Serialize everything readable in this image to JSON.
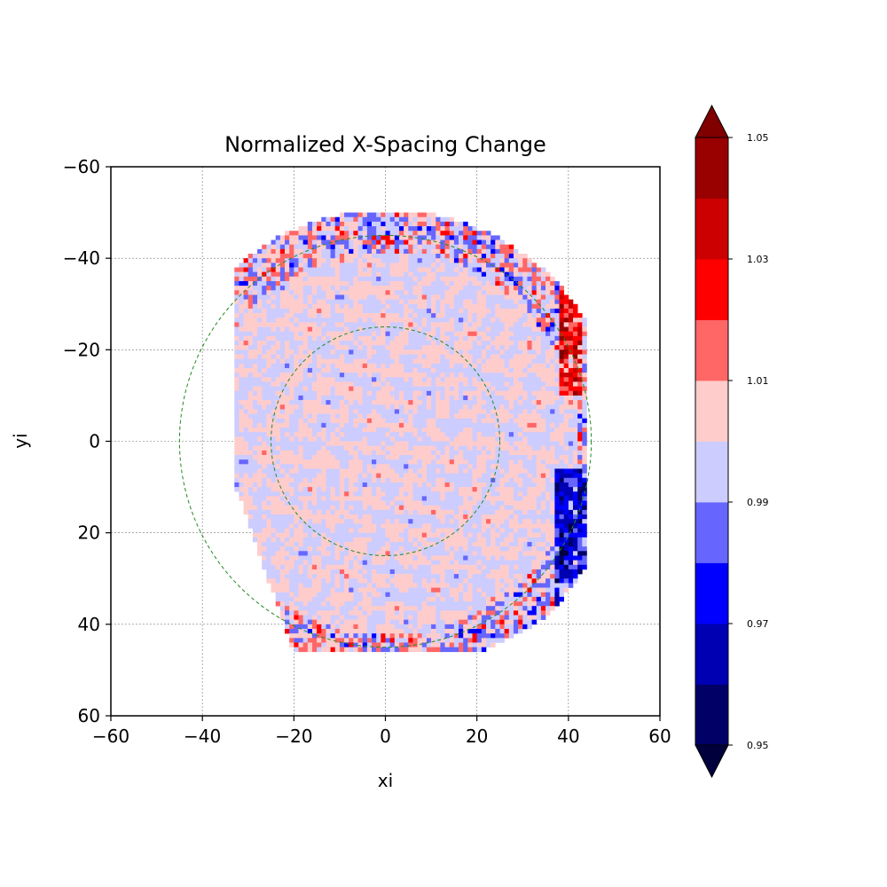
{
  "chart_data": {
    "type": "heatmap",
    "title": "Normalized X-Spacing Change",
    "xlabel": "xi",
    "ylabel": "yi",
    "xlim": [
      -60,
      60
    ],
    "ylim": [
      60,
      -60
    ],
    "y_inverted": true,
    "grid": true,
    "x_ticks": [
      "−60",
      "−40",
      "−20",
      "0",
      "20",
      "40",
      "60"
    ],
    "y_ticks": [
      "−60",
      "−40",
      "−20",
      "0",
      "20",
      "40",
      "60"
    ],
    "x_tick_values": [
      -60,
      -40,
      -20,
      0,
      20,
      40,
      60
    ],
    "y_tick_values": [
      -60,
      -40,
      -20,
      0,
      20,
      40,
      60
    ],
    "reference_circles": [
      {
        "center": [
          0,
          0
        ],
        "radius": 45,
        "color": "#228b22",
        "style": "dashed"
      },
      {
        "center": [
          0,
          0
        ],
        "radius": 25,
        "color": "#228b22",
        "style": "dashed"
      }
    ],
    "data_region": "irregular roughly circular region spanning x from about -33 to 43 and y from about -50 to 46",
    "value_distribution": "mostly 0.99-1.01 (light blue / light pink) with blue patches near x=40 to 43 and red streak near x=40, y=-30 to -10",
    "colorbar": {
      "min": 0.95,
      "max": 1.05,
      "levels": [
        0.95,
        0.96,
        0.97,
        0.98,
        0.99,
        1.0,
        1.01,
        1.02,
        1.03,
        1.04,
        1.05
      ],
      "tick_labels": [
        "0.95",
        "0.97",
        "0.99",
        "1.01",
        "1.03",
        "1.05"
      ],
      "tick_values": [
        0.95,
        0.97,
        0.99,
        1.01,
        1.03,
        1.05
      ],
      "extend": "both",
      "colors": [
        "#000066",
        "#0000b3",
        "#0000ff",
        "#6666ff",
        "#ccccff",
        "#ffcccc",
        "#ff6666",
        "#ff0000",
        "#cc0000",
        "#990000"
      ],
      "under_color": "#00003d",
      "over_color": "#800000"
    }
  }
}
